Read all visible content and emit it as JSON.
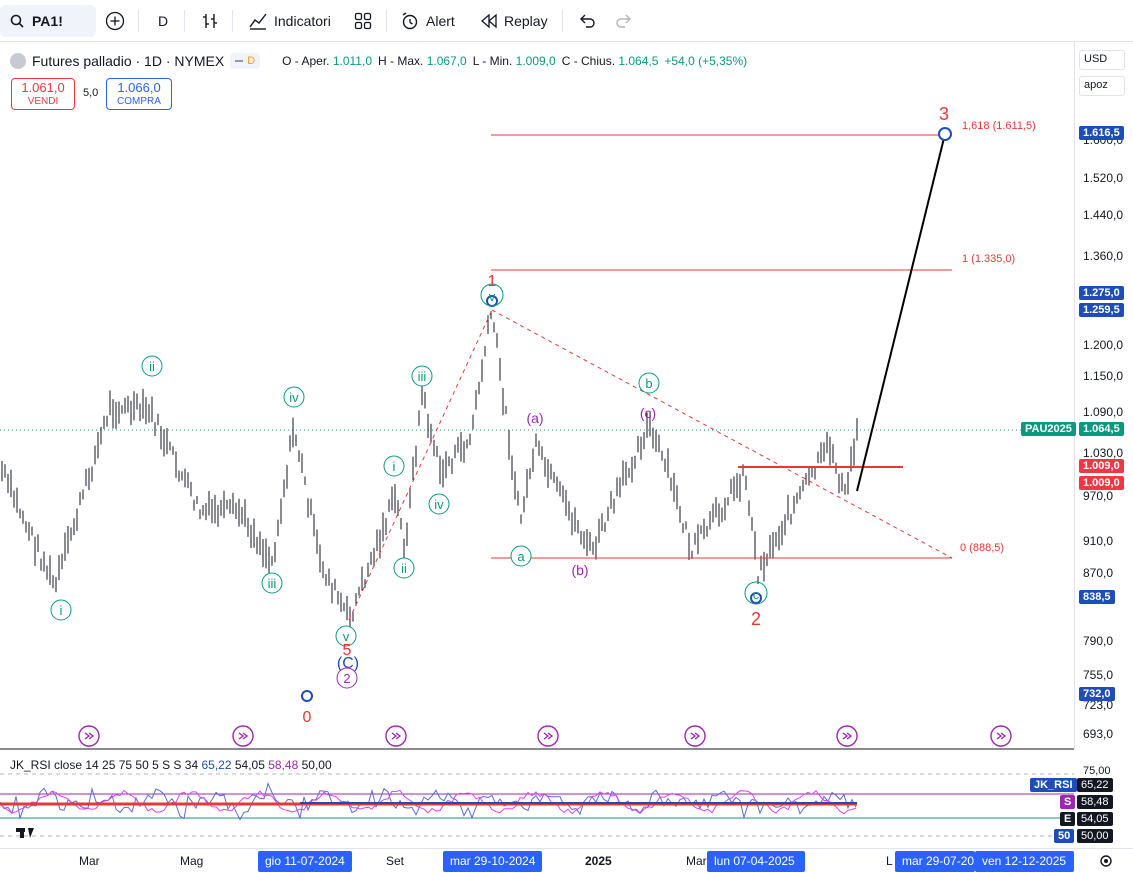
{
  "toolbar": {
    "symbol": "PA1!",
    "interval": "D",
    "indicators_label": "Indicatori",
    "alert_label": "Alert",
    "replay_label": "Replay"
  },
  "legend": {
    "title": "Futures palladio · 1D · NYMEX",
    "badge": "D",
    "o_label": "O - Aper.",
    "o": "1.011,0",
    "h_label": "H - Max.",
    "h": "1.067,0",
    "l_label": "L - Min.",
    "l": "1.009,0",
    "c_label": "C - Chius.",
    "c": "1.064,5",
    "chg": "+54,0 (+5,35%)"
  },
  "trade": {
    "sell_price": "1.061,0",
    "sell_label": "VENDI",
    "spread": "5,0",
    "buy_price": "1.066,0",
    "buy_label": "COMPRA"
  },
  "axis": {
    "currency": "USD",
    "mode": "apoz",
    "ticks": [
      "1.600,0",
      "1.520,0",
      "1.440,0",
      "1.360,0",
      "1.200,0",
      "1.150,0",
      "1.090,0",
      "1.030,0",
      "970,0",
      "910,0",
      "870,0",
      "790,0",
      "755,0",
      "723,0",
      "693,0"
    ]
  },
  "price_tags": {
    "t1": "1.616,5",
    "t2": "1.275,0",
    "t3": "1.259,5",
    "symbol_tag": "PAU2025",
    "last": "1.064,5",
    "t4": "1.009,0",
    "t5": "1.009,0",
    "t6": "838,5",
    "t7": "732,0"
  },
  "fib": {
    "f1618": "1,618 (1.611,5)",
    "f1": "1 (1.335,0)",
    "f0": "0 (888,5)"
  },
  "waves": {
    "w0": "0",
    "w1": "1",
    "w2": "2",
    "w3": "3",
    "w5": "5",
    "i": "i",
    "ii": "ii",
    "iii": "iii",
    "iv": "iv",
    "v": "v",
    "a_paren": "(a)",
    "b_paren": "(b)",
    "c_paren": "(c)",
    "C_paren": "(C)",
    "a": "a",
    "b": "b",
    "circ2": "2"
  },
  "rsi": {
    "title": "JK_RSI close 14 25 75 50 5 S S 34",
    "v1": "65,22",
    "v2": "54,05",
    "v3": "58,48",
    "v4": "50,00",
    "tag_name": "JK_RSI",
    "tag_s": "S",
    "tag_e": "E",
    "tag_50": "50",
    "axis_75": "75,00",
    "axis_50": "50,00"
  },
  "time_axis": {
    "labels": [
      "Mar",
      "Mag",
      "Set",
      "2025",
      "Mar",
      "L"
    ],
    "hl1": "gio 11-07-2024",
    "hl2": "mar 29-10-2024",
    "hl3": "lun 07-04-2025",
    "hl4": "mar 29-07-20",
    "hl5": "ven 12-12-2025"
  },
  "colors": {
    "up": "#089981",
    "down": "#f23645",
    "bar": "#131722",
    "wave_green": "#089981",
    "wave_purple": "#9c27b0",
    "wave_red": "#e53935",
    "accent": "#2962ff"
  }
}
